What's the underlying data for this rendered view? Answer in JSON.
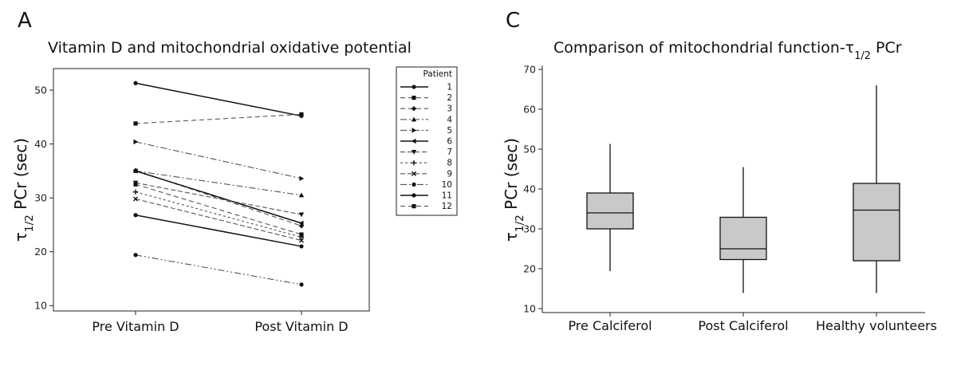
{
  "panels": {
    "a_letter": "A",
    "c_letter": "C"
  },
  "chart_data": [
    {
      "type": "line",
      "title": "Vitamin D and mitochondrial oxidative potential",
      "xlabel": "",
      "ylabel_main": "τ",
      "ylabel_sub": "1/2",
      "ylabel_rest": " PCr (sec)",
      "categories": [
        "Pre Vitamin D",
        "Post Vitamin D"
      ],
      "ylim": [
        9,
        54
      ],
      "yticks": [
        10,
        20,
        30,
        40,
        50
      ],
      "legend_title": "Patient",
      "legend_position": "right",
      "series": [
        {
          "name": "1",
          "values": [
            51.3,
            45.2
          ],
          "dash": "",
          "marker": "circle"
        },
        {
          "name": "2",
          "values": [
            43.8,
            45.5
          ],
          "dash": "6,4",
          "marker": "square"
        },
        {
          "name": "3",
          "values": [
            35.1,
            24.8
          ],
          "dash": "6,4",
          "marker": "diamond"
        },
        {
          "name": "4",
          "values": [
            35.0,
            30.5
          ],
          "dash": "8,3,2,3",
          "marker": "triangle-up"
        },
        {
          "name": "5",
          "values": [
            40.4,
            33.6
          ],
          "dash": "8,3,2,3",
          "marker": "triangle-right"
        },
        {
          "name": "6",
          "values": [
            35.0,
            25.3
          ],
          "dash": "",
          "marker": "triangle-left"
        },
        {
          "name": "7",
          "values": [
            32.8,
            26.9
          ],
          "dash": "6,3",
          "marker": "triangle-down"
        },
        {
          "name": "8",
          "values": [
            31.1,
            22.7
          ],
          "dash": "3,3",
          "marker": "plus"
        },
        {
          "name": "9",
          "values": [
            29.8,
            22.1
          ],
          "dash": "6,3",
          "marker": "cross"
        },
        {
          "name": "10",
          "values": [
            19.4,
            13.9
          ],
          "dash": "8,3,2,3,2,3",
          "marker": "circle"
        },
        {
          "name": "11",
          "values": [
            26.8,
            21.0
          ],
          "dash": "",
          "marker": "circle"
        },
        {
          "name": "12",
          "values": [
            32.5,
            23.2
          ],
          "dash": "6,4",
          "marker": "square"
        }
      ]
    },
    {
      "type": "box",
      "title": "Comparison of mitochondrial function-τ",
      "title_sub": "1/2",
      "title_rest": " PCr",
      "xlabel": "",
      "ylabel_main": "τ",
      "ylabel_sub": "1/2",
      "ylabel_rest": " PCr (sec)",
      "categories": [
        "Pre Calciferol",
        "Post Calciferol",
        "Healthy volunteers"
      ],
      "ylim": [
        9,
        71
      ],
      "yticks": [
        10,
        20,
        30,
        40,
        50,
        60,
        70
      ],
      "boxes": [
        {
          "min": 19.4,
          "q1": 30.0,
          "median": 34.0,
          "q3": 39.0,
          "max": 51.3
        },
        {
          "min": 13.9,
          "q1": 22.3,
          "median": 25.0,
          "q3": 32.9,
          "max": 45.5
        },
        {
          "min": 13.9,
          "q1": 22.0,
          "median": 34.7,
          "q3": 41.4,
          "max": 66.0
        }
      ],
      "box_color": "#c8c9cb"
    }
  ]
}
